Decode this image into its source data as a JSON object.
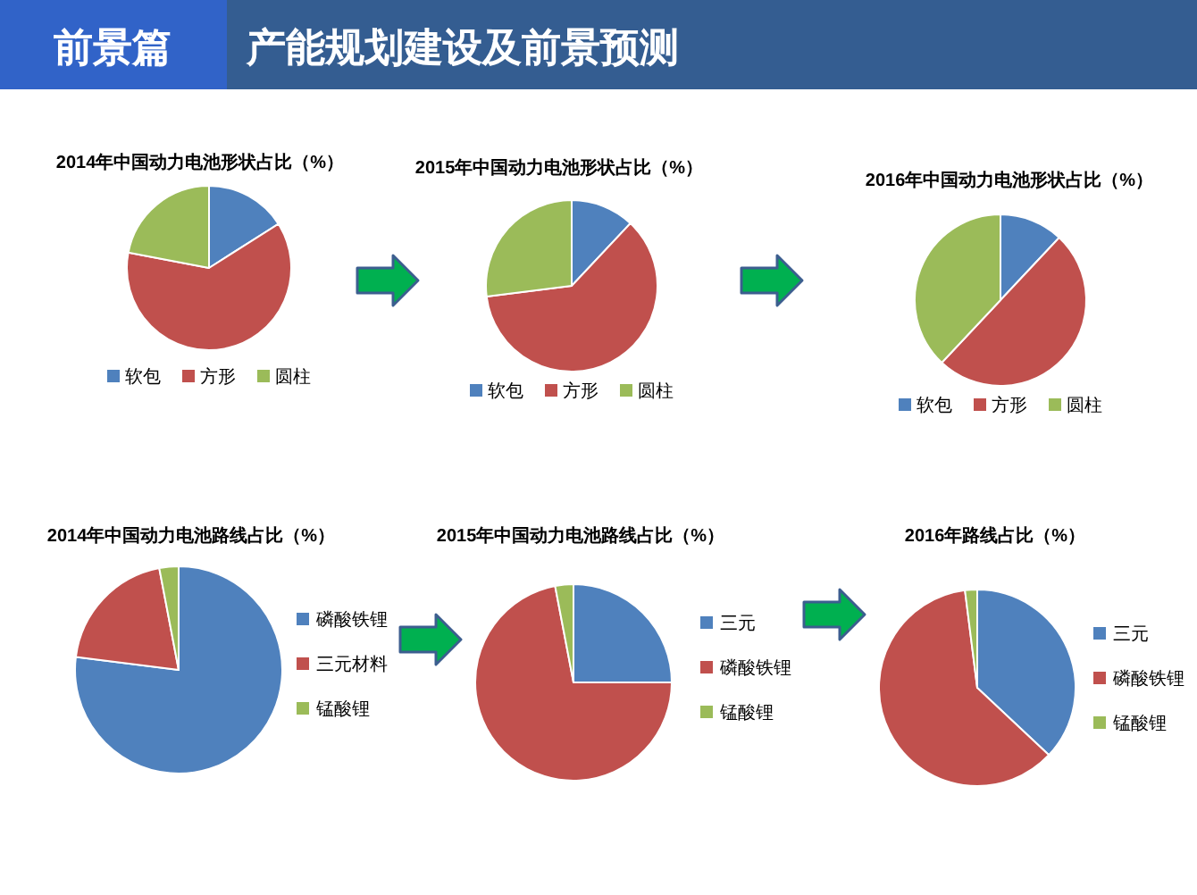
{
  "chart_data": [
    {
      "type": "other",
      "title": "前景篇",
      "subtitle": "产能规划建设及前景预测"
    },
    {
      "type": "pie",
      "title": "2014年中国动力电池形状占比（%）",
      "categories": [
        "软包",
        "方形",
        "圆柱"
      ],
      "values": [
        16,
        62,
        22
      ],
      "colors": [
        "#4f81bd",
        "#c0504d",
        "#9bbb59"
      ],
      "legend": "bottom"
    },
    {
      "type": "pie",
      "title": "2015年中国动力电池形状占比（%）",
      "categories": [
        "软包",
        "方形",
        "圆柱"
      ],
      "values": [
        12,
        61,
        27
      ],
      "colors": [
        "#4f81bd",
        "#c0504d",
        "#9bbb59"
      ],
      "legend": "bottom"
    },
    {
      "type": "pie",
      "title": "2016年中国动力电池形状占比（%）",
      "categories": [
        "软包",
        "方形",
        "圆柱"
      ],
      "values": [
        12,
        50,
        38
      ],
      "colors": [
        "#4f81bd",
        "#c0504d",
        "#9bbb59"
      ],
      "legend": "bottom"
    },
    {
      "type": "pie",
      "title": "2014年中国动力电池路线占比（%）",
      "categories": [
        "磷酸铁锂",
        "三元材料",
        "锰酸锂"
      ],
      "values": [
        77,
        20,
        3
      ],
      "colors": [
        "#4f81bd",
        "#c0504d",
        "#9bbb59"
      ],
      "legend": "right"
    },
    {
      "type": "pie",
      "title": "2015年中国动力电池路线占比（%）",
      "categories": [
        "三元",
        "磷酸铁锂",
        "锰酸锂"
      ],
      "values": [
        25,
        72,
        3
      ],
      "colors": [
        "#4f81bd",
        "#c0504d",
        "#9bbb59"
      ],
      "legend": "right"
    },
    {
      "type": "pie",
      "title": "2016年路线占比（%）",
      "categories": [
        "三元",
        "磷酸铁锂",
        "锰酸锂"
      ],
      "values": [
        37,
        61,
        2
      ],
      "colors": [
        "#4f81bd",
        "#c0504d",
        "#9bbb59"
      ],
      "legend": "right"
    }
  ]
}
